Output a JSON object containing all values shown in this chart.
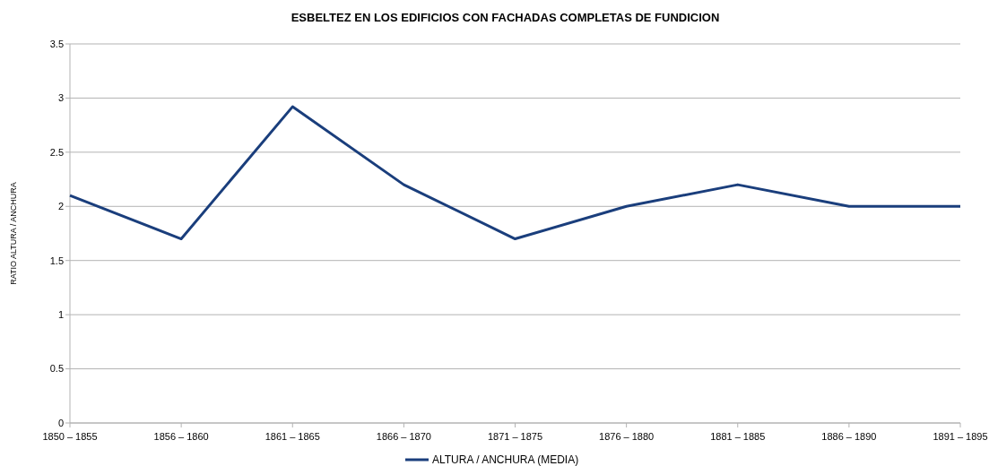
{
  "chart_data": {
    "type": "line",
    "title": "ESBELTEZ EN LOS EDIFICIOS CON FACHADAS COMPLETAS DE FUNDICION",
    "ylabel": "RATIO ALTURA / ANCHURA",
    "categories": [
      "1850 – 1855",
      "1856 – 1860",
      "1861 – 1865",
      "1866 – 1870",
      "1871 – 1875",
      "1876 – 1880",
      "1881 – 1885",
      "1886 – 1890",
      "1891 – 1895"
    ],
    "series": [
      {
        "name": "ALTURA / ANCHURA (MEDIA)",
        "color": "#1a3e7c",
        "values": [
          2.1,
          1.7,
          2.92,
          2.2,
          1.7,
          2.0,
          2.2,
          2.0,
          2.0
        ]
      }
    ],
    "ylim": [
      0,
      3.5
    ],
    "yticks": [
      0,
      0.5,
      1,
      1.5,
      2,
      2.5,
      3,
      3.5
    ],
    "grid": "y",
    "legend": "bottom",
    "marker": "none",
    "line_style": "solid"
  }
}
